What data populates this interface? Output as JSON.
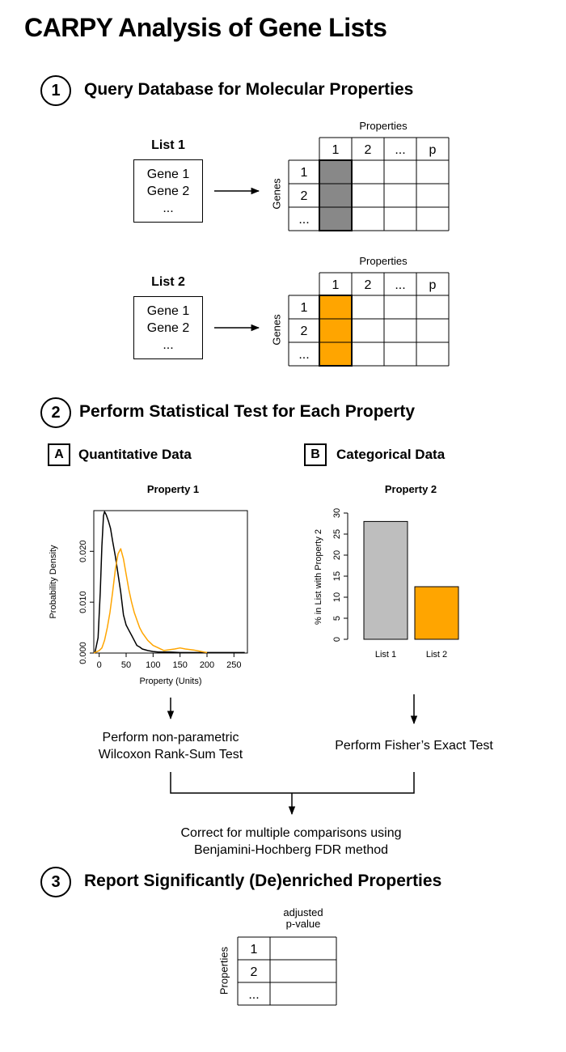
{
  "title": "CARPY Analysis of Gene Lists",
  "step1": {
    "number": "1",
    "title": "Query Database for Molecular Properties",
    "lists": [
      {
        "name": "List 1",
        "items": [
          "Gene 1",
          "Gene 2",
          "..."
        ],
        "highlight_color": "#888888"
      },
      {
        "name": "List 2",
        "items": [
          "Gene 1",
          "Gene 2",
          "..."
        ],
        "highlight_color": "#ffa500"
      }
    ],
    "table": {
      "col_header_label": "Properties",
      "row_header_label": "Genes",
      "columns": [
        "1",
        "2",
        "...",
        "p"
      ],
      "rows": [
        "1",
        "2",
        "..."
      ]
    }
  },
  "step2": {
    "number": "2",
    "title": "Perform Statistical Test for Each Property",
    "panel_a": {
      "letter": "A",
      "title": "Quantitative Data",
      "test_text_line1": "Perform non-parametric",
      "test_text_line2": "Wilcoxon Rank-Sum Test"
    },
    "panel_b": {
      "letter": "B",
      "title": "Categorical Data",
      "test_text": "Perform Fisher’s Exact Test"
    },
    "correction_line1": "Correct for multiple comparisons using",
    "correction_line2": "Benjamini-Hochberg FDR method"
  },
  "step3": {
    "number": "3",
    "title": "Report Significantly (De)enriched Properties",
    "table": {
      "col_header_line1": "adjusted",
      "col_header_line2": "p-value",
      "row_header_label": "Properties",
      "rows": [
        "1",
        "2",
        "..."
      ]
    }
  },
  "chart_data": [
    {
      "type": "line",
      "title": "Property 1",
      "xlabel": "Property (Units)",
      "ylabel": "Probability Density",
      "xlim": [
        -10,
        275
      ],
      "ylim": [
        0,
        0.028
      ],
      "xticks": [
        0,
        50,
        100,
        150,
        200,
        250
      ],
      "xtick_labels": [
        "0",
        "50",
        "100",
        "150",
        "200",
        "250"
      ],
      "yticks": [
        0,
        0.01,
        0.02
      ],
      "ytick_labels": [
        "0.000",
        "0.010",
        "0.020"
      ],
      "series": [
        {
          "color": "#000000",
          "x": [
            -8,
            -2,
            2,
            5,
            8,
            10,
            13,
            17,
            21,
            25,
            30,
            35,
            40,
            45,
            50,
            55,
            60,
            65,
            70,
            75,
            80,
            90,
            100,
            110,
            130,
            150,
            200,
            270
          ],
          "y": [
            0,
            0.003,
            0.012,
            0.021,
            0.027,
            0.0278,
            0.0272,
            0.026,
            0.0245,
            0.022,
            0.019,
            0.0155,
            0.012,
            0.0075,
            0.0055,
            0.0045,
            0.0035,
            0.0025,
            0.0015,
            0.0012,
            0.0008,
            0.0005,
            0.0003,
            0.0002,
            0.0002,
            0.0001,
            0.0001,
            0.0001
          ]
        },
        {
          "color": "#ffa500",
          "x": [
            -10,
            0,
            5,
            10,
            15,
            20,
            25,
            30,
            35,
            40,
            45,
            50,
            55,
            60,
            65,
            70,
            75,
            80,
            90,
            100,
            110,
            120,
            140,
            150,
            160,
            175,
            200
          ],
          "y": [
            0,
            0.0005,
            0.001,
            0.0025,
            0.005,
            0.008,
            0.012,
            0.0165,
            0.0195,
            0.0205,
            0.0185,
            0.0155,
            0.0125,
            0.01,
            0.008,
            0.0065,
            0.005,
            0.004,
            0.0025,
            0.0015,
            0.001,
            0.0005,
            0.0008,
            0.001,
            0.0008,
            0.0006,
            0.0001
          ]
        }
      ]
    },
    {
      "type": "bar",
      "title": "Property 2",
      "ylabel": "% in List with Property 2",
      "xlabel": "",
      "categories": [
        "List 1",
        "List 2"
      ],
      "values": [
        28,
        12.5
      ],
      "colors": [
        "#bebebe",
        "#ffa500"
      ],
      "ylim": [
        0,
        30
      ],
      "yticks": [
        0,
        5,
        10,
        15,
        20,
        25,
        30
      ]
    }
  ]
}
